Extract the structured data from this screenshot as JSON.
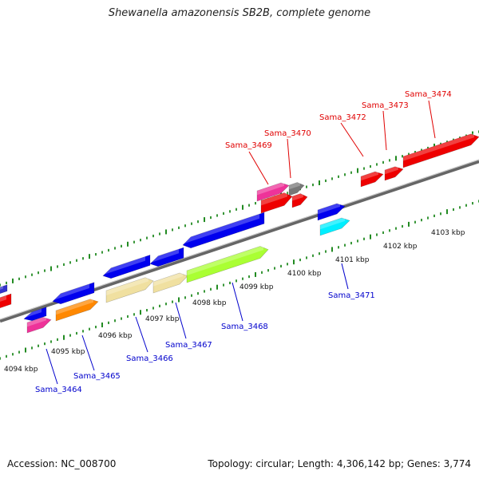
{
  "title": "Shewanella amazonensis SB2B, complete genome",
  "accession_text": "Accession: NC_008700",
  "topology_text": "Topology: circular; Length: 4,306,142 bp; Genes: 3,774",
  "colors": {
    "label_top": "#e00000",
    "label_bottom": "#0000cc",
    "tick": "#228b22",
    "axis": "#888888"
  },
  "scale": {
    "axis_labels": [
      "4094 kbp",
      "4095 kbp",
      "4096 kbp",
      "4097 kbp",
      "4098 kbp",
      "4099 kbp",
      "4100 kbp",
      "4101 kbp",
      "4102 kbp",
      "4103 kbp"
    ]
  },
  "gene_labels_top": [
    "Sama_3469",
    "Sama_3470",
    "Sama_3472",
    "Sama_3473",
    "Sama_3474"
  ],
  "gene_labels_bottom": [
    "Sama_3464",
    "Sama_3465",
    "Sama_3466",
    "Sama_3467",
    "Sama_3468",
    "Sama_3471"
  ],
  "genes": [
    {
      "color": "#3333cc",
      "dir": "left"
    },
    {
      "color": "#ee0000",
      "dir": "left"
    },
    {
      "color": "#0000ee",
      "dir": "left"
    },
    {
      "color": "#ee3399",
      "dir": "right"
    },
    {
      "color": "#0000ee",
      "dir": "left"
    },
    {
      "color": "#ff8800",
      "dir": "right"
    },
    {
      "color": "#0000ee",
      "dir": "left"
    },
    {
      "color": "#f0e0a0",
      "dir": "right"
    },
    {
      "color": "#0000ee",
      "dir": "left"
    },
    {
      "color": "#f0e0a0",
      "dir": "right"
    },
    {
      "color": "#0000ee",
      "dir": "left"
    },
    {
      "color": "#aaff33",
      "dir": "right"
    },
    {
      "color": "#ee3399",
      "dir": "right"
    },
    {
      "color": "#777777",
      "dir": "right"
    },
    {
      "color": "#ee0000",
      "dir": "right"
    },
    {
      "color": "#ee0000",
      "dir": "right"
    },
    {
      "color": "#0000ee",
      "dir": "right"
    },
    {
      "color": "#00eeff",
      "dir": "right"
    },
    {
      "color": "#ee0000",
      "dir": "right"
    },
    {
      "color": "#ee0000",
      "dir": "right"
    },
    {
      "color": "#ee0000",
      "dir": "right"
    }
  ]
}
